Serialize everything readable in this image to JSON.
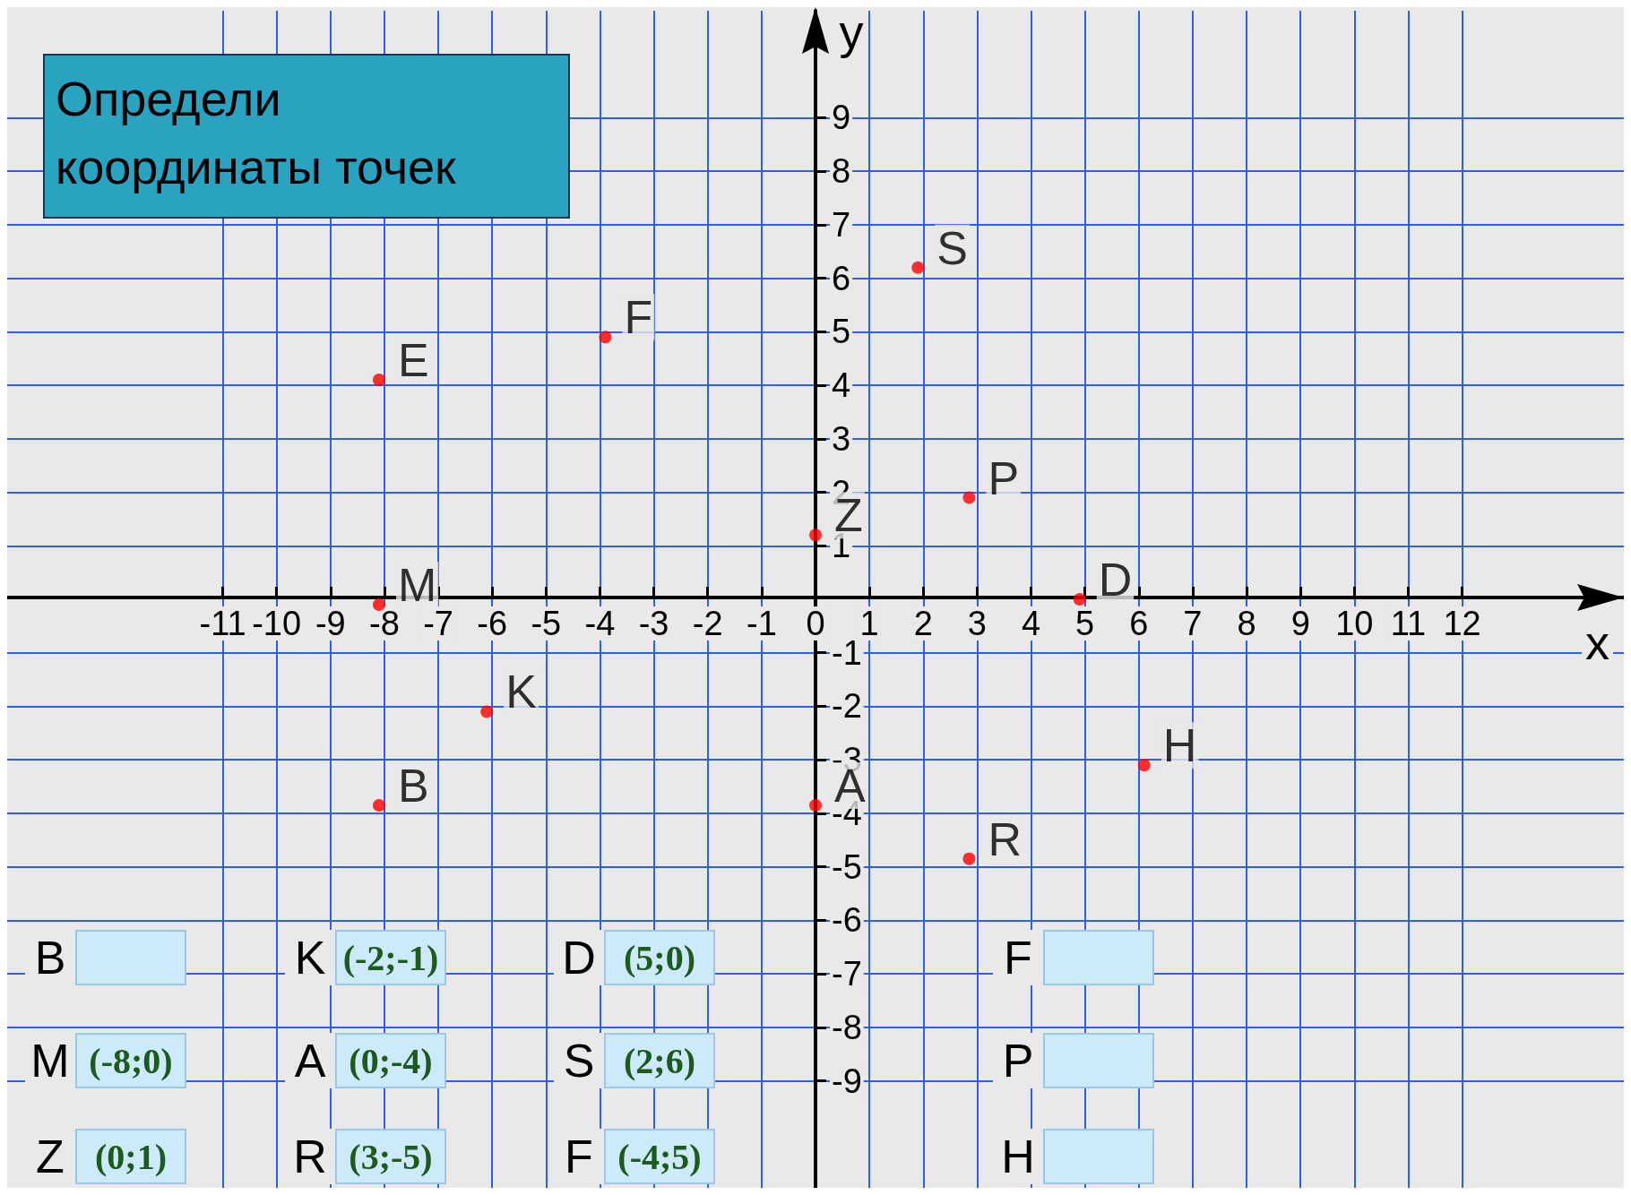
{
  "chart_data": {
    "type": "scatter",
    "title": "Определи координаты точек",
    "xlabel": "x",
    "ylabel": "y",
    "x": [
      1.9,
      -3.9,
      -8.1,
      0,
      2.85,
      -8.1,
      4.9,
      -6.1,
      -8.1,
      0,
      6.1,
      2.85
    ],
    "series": [
      {
        "color": "#ff0000",
        "values": [
          6.2,
          4.9,
          4.1,
          1.2,
          1.9,
          -0.1,
          0,
          -2.1,
          -3.85,
          -3.85,
          -3.1,
          -4.85
        ]
      }
    ],
    "xlim": [
      -15,
      15
    ],
    "ylim": [
      -11,
      11
    ],
    "xticks": [
      -11,
      -10,
      -9,
      -8,
      -7,
      -6,
      -5,
      -4,
      -3,
      -2,
      -1,
      0,
      1,
      2,
      3,
      4,
      5,
      6,
      7,
      8,
      9,
      10,
      11,
      12
    ],
    "yticks": [
      -9,
      -8,
      -7,
      -6,
      -5,
      -4,
      -3,
      -2,
      -1,
      1,
      2,
      3,
      4,
      5,
      6,
      7,
      8,
      9
    ],
    "grid": true,
    "marker": "circle",
    "annotations": [
      {
        "text": "S",
        "x": 1.9,
        "y": 6.2
      },
      {
        "text": "F",
        "x": -3.9,
        "y": 4.9
      },
      {
        "text": "E",
        "x": -8.1,
        "y": 4.1
      },
      {
        "text": "Z",
        "x": 0,
        "y": 1.2
      },
      {
        "text": "P",
        "x": 2.85,
        "y": 1.9
      },
      {
        "text": "M",
        "x": -8.1,
        "y": -0.1
      },
      {
        "text": "D",
        "x": 4.9,
        "y": 0
      },
      {
        "text": "K",
        "x": -6.1,
        "y": -2.1
      },
      {
        "text": "B",
        "x": -8.1,
        "y": -3.85
      },
      {
        "text": "A",
        "x": 0,
        "y": -3.85
      },
      {
        "text": "H",
        "x": 6.1,
        "y": -3.1
      },
      {
        "text": "R",
        "x": 2.85,
        "y": -4.85
      },
      "B",
      "K (-2;-1)",
      "D (5;0)",
      "F",
      "M (-8;0)",
      "A (0;-4)",
      "S (2;6)",
      "P",
      "Z (0;1)",
      "R (3;-5)",
      "F (-4;5)",
      "H"
    ]
  }
}
